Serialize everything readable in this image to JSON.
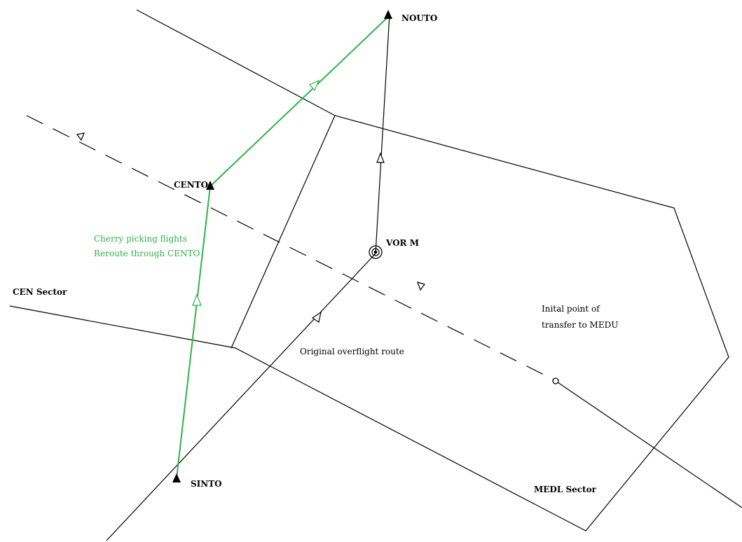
{
  "colors": {
    "background": "#ffffff",
    "line": "#000000",
    "reroute": "#2fb24a"
  },
  "waypoints": {
    "nouto": "NOUTO",
    "cento": "CENTO",
    "sinto": "SINTO",
    "vor": "VOR M"
  },
  "sectors": {
    "cen": "CEN Sector",
    "medl": "MEDL Sector"
  },
  "annotations": {
    "cherry_line1": "Cherry picking flights",
    "cherry_line2": "Reroute through CENTO",
    "original_route": "Original overflight route",
    "transfer_line1": "Inital point of",
    "transfer_line2": "transfer to MEDU"
  },
  "icons": {
    "waypoint": "filled-triangle-icon",
    "vor": "vor-concentric-circle-icon",
    "transfer_point": "small-circle-icon",
    "direction": "open-arrowhead-icon"
  }
}
